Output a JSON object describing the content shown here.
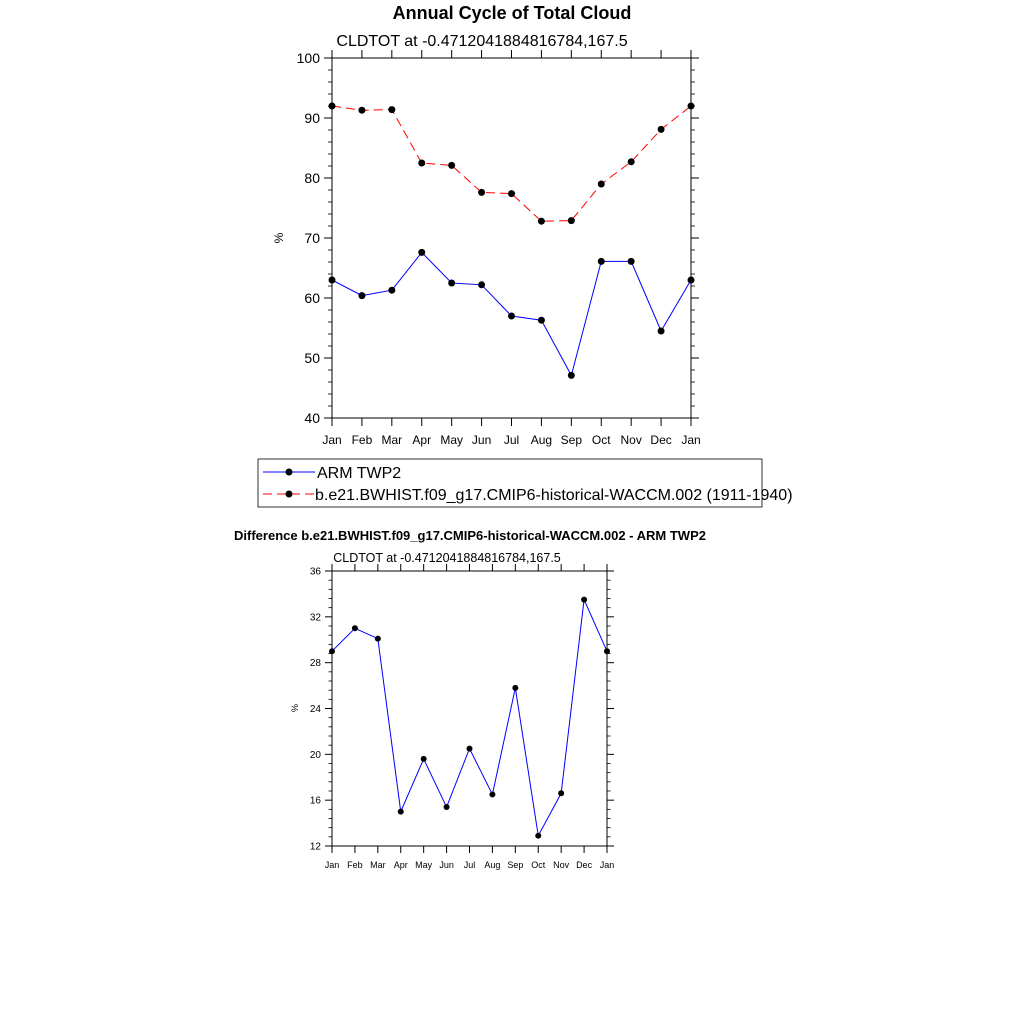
{
  "chart_data": [
    {
      "type": "line",
      "title": "Annual Cycle of Total Cloud",
      "subtitle": "CLDTOT at -0.4712041884816784,167.5",
      "xlabel": "",
      "ylabel": "%",
      "categories": [
        "Jan",
        "Feb",
        "Mar",
        "Apr",
        "May",
        "Jun",
        "Jul",
        "Aug",
        "Sep",
        "Oct",
        "Nov",
        "Dec",
        "Jan"
      ],
      "ylim": [
        40,
        100
      ],
      "yticks": [
        "40",
        "50",
        "60",
        "70",
        "80",
        "90",
        "100"
      ],
      "legend_position": "bottom",
      "series": [
        {
          "name": "ARM TWP2",
          "color": "#0000ff",
          "dash": "solid",
          "values": [
            63.0,
            60.4,
            61.3,
            67.6,
            62.5,
            62.2,
            57.0,
            56.3,
            47.1,
            66.1,
            66.1,
            54.5,
            63.0
          ]
        },
        {
          "name": "b.e21.BWHIST.f09_g17.CMIP6-historical-WACCM.002 (1911-1940)",
          "color": "#ff0000",
          "dash": "dashed",
          "values": [
            92.0,
            91.3,
            91.4,
            82.5,
            82.1,
            77.6,
            77.4,
            72.8,
            72.9,
            79.0,
            82.7,
            88.1,
            92.0
          ]
        }
      ]
    },
    {
      "type": "line",
      "title": "Difference b.e21.BWHIST.f09_g17.CMIP6-historical-WACCM.002 - ARM TWP2",
      "subtitle": "CLDTOT at -0.4712041884816784,167.5",
      "xlabel": "",
      "ylabel": "%",
      "categories": [
        "Jan",
        "Feb",
        "Mar",
        "Apr",
        "May",
        "Jun",
        "Jul",
        "Aug",
        "Sep",
        "Oct",
        "Nov",
        "Dec",
        "Jan"
      ],
      "ylim": [
        12,
        36
      ],
      "yticks": [
        "12",
        "16",
        "20",
        "24",
        "28",
        "32",
        "36"
      ],
      "series": [
        {
          "name": "Difference",
          "color": "#0000ff",
          "dash": "solid",
          "values": [
            29.0,
            31.0,
            30.1,
            15.0,
            19.6,
            15.4,
            20.5,
            16.5,
            25.8,
            12.9,
            16.6,
            33.5,
            29.0
          ]
        }
      ]
    }
  ]
}
